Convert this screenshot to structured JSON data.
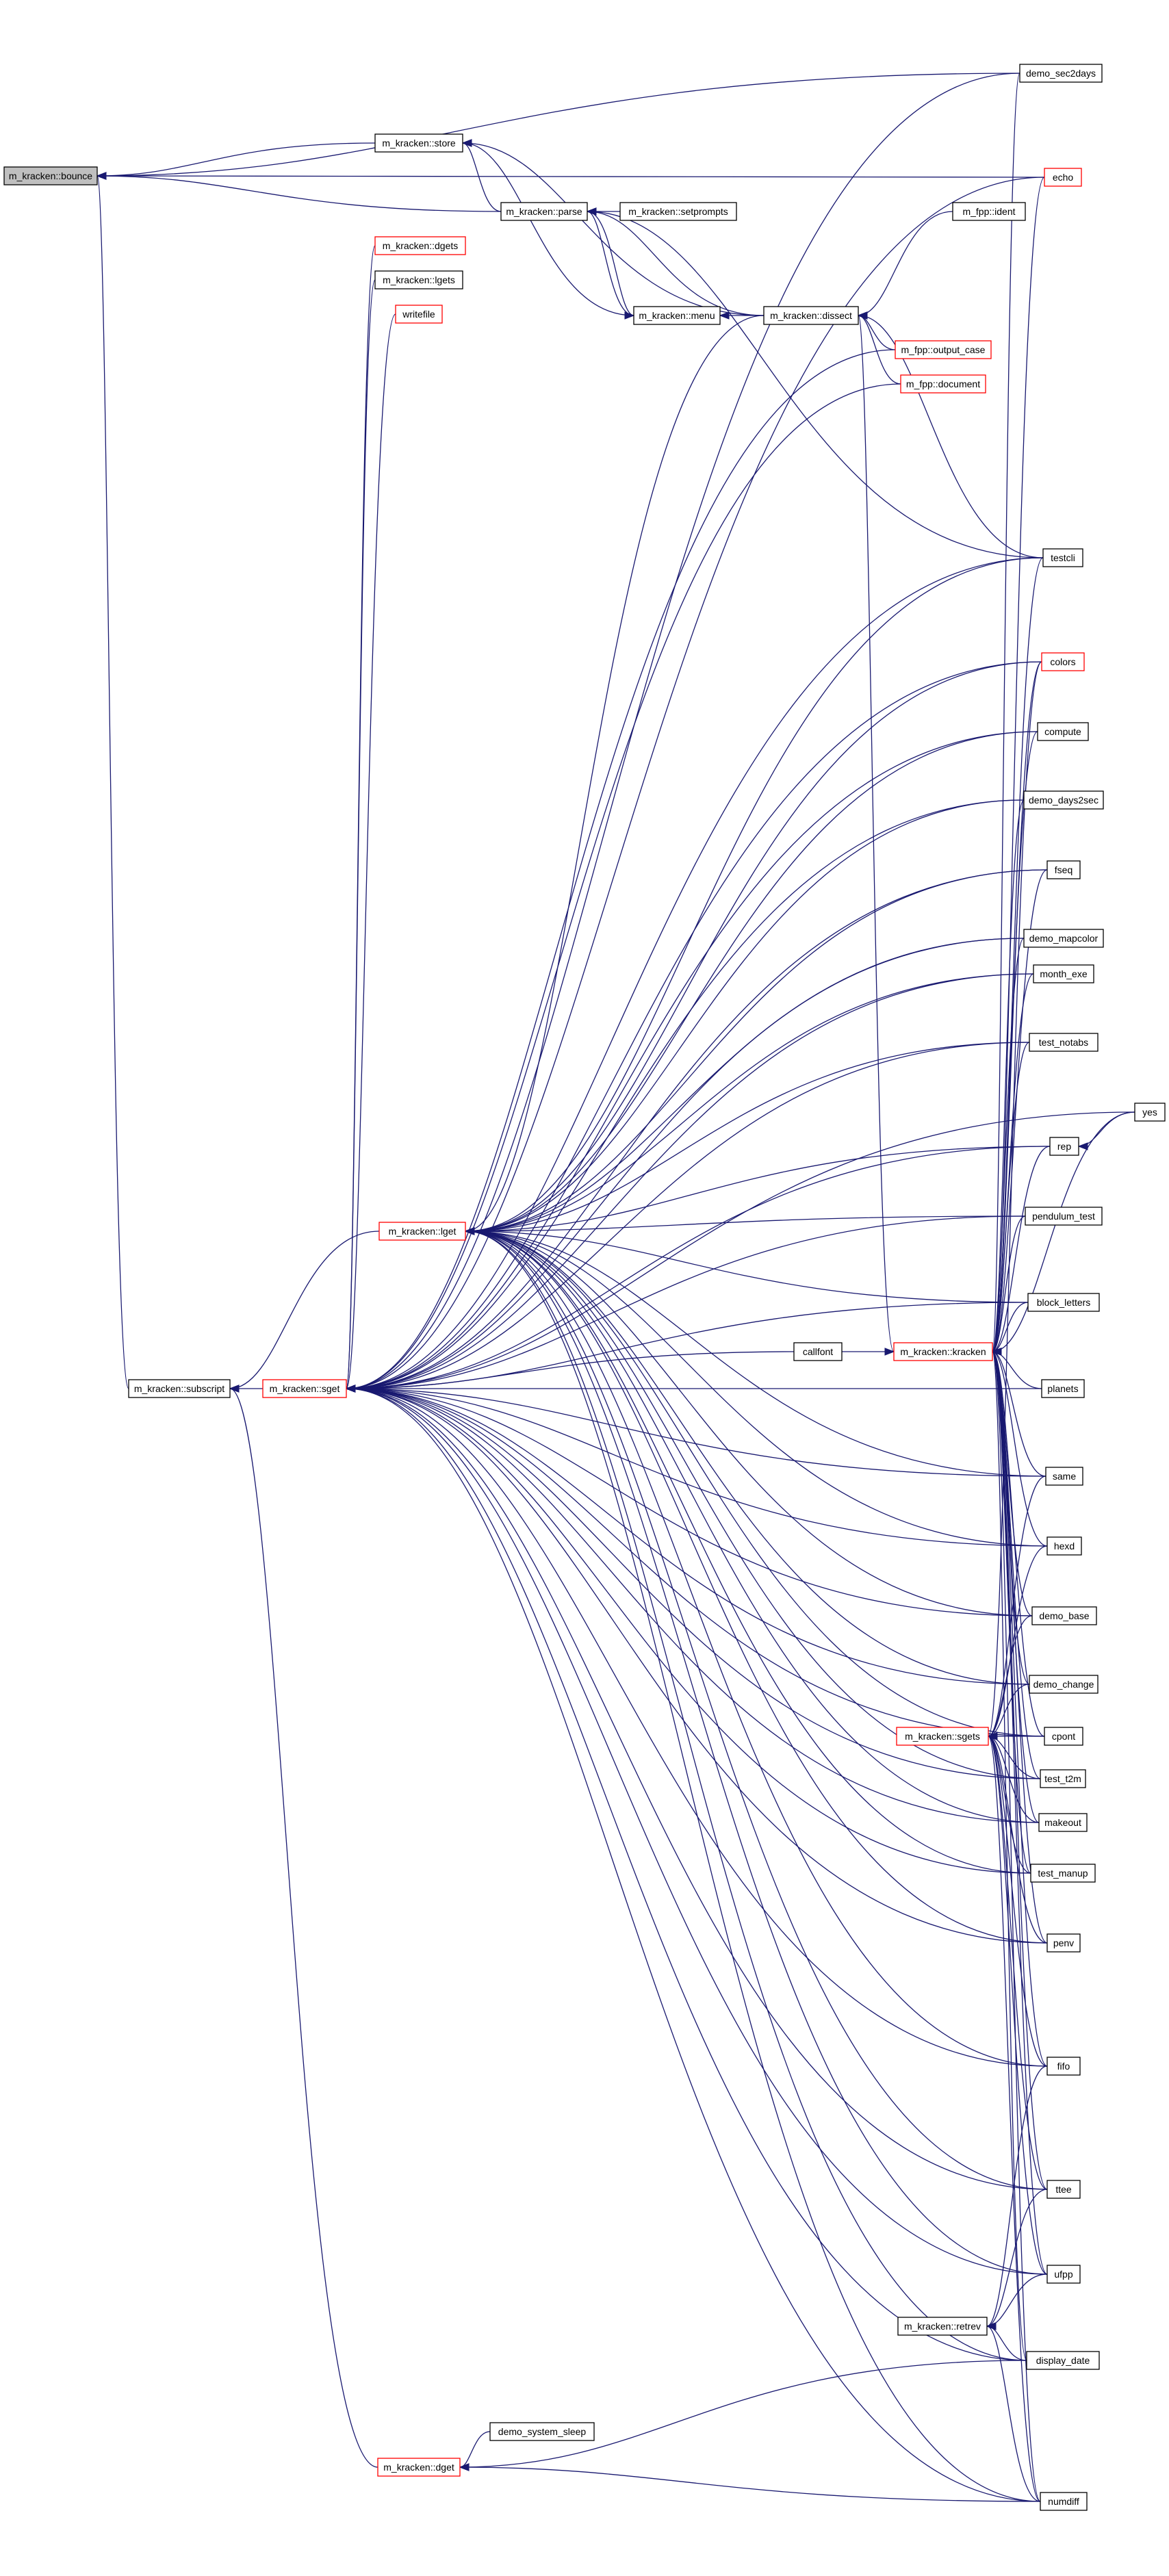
{
  "colors": {
    "edge": "#191970",
    "node_border": "#000000",
    "node_border_highlight": "#ff0000",
    "root_fill": "#bfbfbf"
  },
  "nodes": [
    {
      "id": "bounce",
      "label": "m_kracken::bounce",
      "style": "root"
    },
    {
      "id": "store",
      "label": "m_kracken::store",
      "style": "normal"
    },
    {
      "id": "parse",
      "label": "m_kracken::parse",
      "style": "normal"
    },
    {
      "id": "setprompts",
      "label": "m_kracken::setprompts",
      "style": "normal"
    },
    {
      "id": "dgets",
      "label": "m_kracken::dgets",
      "style": "red"
    },
    {
      "id": "lgets",
      "label": "m_kracken::lgets",
      "style": "normal"
    },
    {
      "id": "writefile",
      "label": "writefile",
      "style": "red"
    },
    {
      "id": "menu",
      "label": "m_kracken::menu",
      "style": "normal"
    },
    {
      "id": "dissect",
      "label": "m_kracken::dissect",
      "style": "normal"
    },
    {
      "id": "ident",
      "label": "m_fpp::ident",
      "style": "normal"
    },
    {
      "id": "output_case",
      "label": "m_fpp::output_case",
      "style": "red"
    },
    {
      "id": "document",
      "label": "m_fpp::document",
      "style": "red"
    },
    {
      "id": "demo_sec2days",
      "label": "demo_sec2days",
      "style": "normal"
    },
    {
      "id": "echo",
      "label": "echo",
      "style": "red"
    },
    {
      "id": "testcli",
      "label": "testcli",
      "style": "normal"
    },
    {
      "id": "colors",
      "label": "colors",
      "style": "red"
    },
    {
      "id": "compute",
      "label": "compute",
      "style": "normal"
    },
    {
      "id": "demo_days2sec",
      "label": "demo_days2sec",
      "style": "normal"
    },
    {
      "id": "fseq",
      "label": "fseq",
      "style": "normal"
    },
    {
      "id": "demo_mapcolor",
      "label": "demo_mapcolor",
      "style": "normal"
    },
    {
      "id": "month_exe",
      "label": "month_exe",
      "style": "normal"
    },
    {
      "id": "test_notabs",
      "label": "test_notabs",
      "style": "normal"
    },
    {
      "id": "yes",
      "label": "yes",
      "style": "normal"
    },
    {
      "id": "rep",
      "label": "rep",
      "style": "normal"
    },
    {
      "id": "pendulum_test",
      "label": "pendulum_test",
      "style": "normal"
    },
    {
      "id": "lget",
      "label": "m_kracken::lget",
      "style": "red"
    },
    {
      "id": "block_letters",
      "label": "block_letters",
      "style": "normal"
    },
    {
      "id": "callfont",
      "label": "callfont",
      "style": "normal"
    },
    {
      "id": "kracken",
      "label": "m_kracken::kracken",
      "style": "red"
    },
    {
      "id": "subscript",
      "label": "m_kracken::subscript",
      "style": "normal"
    },
    {
      "id": "sget",
      "label": "m_kracken::sget",
      "style": "red"
    },
    {
      "id": "planets",
      "label": "planets",
      "style": "normal"
    },
    {
      "id": "same",
      "label": "same",
      "style": "normal"
    },
    {
      "id": "hexd",
      "label": "hexd",
      "style": "normal"
    },
    {
      "id": "demo_base",
      "label": "demo_base",
      "style": "normal"
    },
    {
      "id": "demo_change",
      "label": "demo_change",
      "style": "normal"
    },
    {
      "id": "sgets",
      "label": "m_kracken::sgets",
      "style": "red"
    },
    {
      "id": "cpont",
      "label": "cpont",
      "style": "normal"
    },
    {
      "id": "test_t2m",
      "label": "test_t2m",
      "style": "normal"
    },
    {
      "id": "makeout",
      "label": "makeout",
      "style": "normal"
    },
    {
      "id": "test_manup",
      "label": "test_manup",
      "style": "normal"
    },
    {
      "id": "penv",
      "label": "penv",
      "style": "normal"
    },
    {
      "id": "fifo",
      "label": "fifo",
      "style": "normal"
    },
    {
      "id": "ttee",
      "label": "ttee",
      "style": "normal"
    },
    {
      "id": "ufpp",
      "label": "ufpp",
      "style": "normal"
    },
    {
      "id": "retrev",
      "label": "m_kracken::retrev",
      "style": "normal"
    },
    {
      "id": "display_date",
      "label": "display_date",
      "style": "normal"
    },
    {
      "id": "demo_system_sleep",
      "label": "demo_system_sleep",
      "style": "normal"
    },
    {
      "id": "dget",
      "label": "m_kracken::dget",
      "style": "red"
    },
    {
      "id": "numdiff",
      "label": "numdiff",
      "style": "normal"
    }
  ],
  "edges": [
    [
      "store",
      "bounce"
    ],
    [
      "parse",
      "bounce"
    ],
    [
      "subscript",
      "bounce"
    ],
    [
      "echo",
      "bounce"
    ],
    [
      "demo_sec2days",
      "bounce"
    ],
    [
      "parse",
      "store"
    ],
    [
      "menu",
      "store"
    ],
    [
      "dissect",
      "store"
    ],
    [
      "setprompts",
      "parse"
    ],
    [
      "menu",
      "parse"
    ],
    [
      "dissect",
      "parse"
    ],
    [
      "testcli",
      "parse"
    ],
    [
      "parse",
      "menu"
    ],
    [
      "dissect",
      "menu"
    ],
    [
      "ident",
      "dissect"
    ],
    [
      "output_case",
      "dissect"
    ],
    [
      "document",
      "dissect"
    ],
    [
      "testcli",
      "dissect"
    ],
    [
      "kracken",
      "dissect"
    ],
    [
      "sget",
      "subscript"
    ],
    [
      "lget",
      "subscript"
    ],
    [
      "dget",
      "subscript"
    ],
    [
      "dgets",
      "sget"
    ],
    [
      "lgets",
      "sget"
    ],
    [
      "writefile",
      "sget"
    ],
    [
      "output_case",
      "sget"
    ],
    [
      "document",
      "sget"
    ],
    [
      "demo_sec2days",
      "sget"
    ],
    [
      "echo",
      "sget"
    ],
    [
      "testcli",
      "sget"
    ],
    [
      "colors",
      "sget"
    ],
    [
      "compute",
      "sget"
    ],
    [
      "demo_days2sec",
      "sget"
    ],
    [
      "fseq",
      "sget"
    ],
    [
      "demo_mapcolor",
      "sget"
    ],
    [
      "month_exe",
      "sget"
    ],
    [
      "test_notabs",
      "sget"
    ],
    [
      "yes",
      "sget"
    ],
    [
      "rep",
      "sget"
    ],
    [
      "pendulum_test",
      "sget"
    ],
    [
      "callfont",
      "sget"
    ],
    [
      "block_letters",
      "sget"
    ],
    [
      "planets",
      "sget"
    ],
    [
      "same",
      "sget"
    ],
    [
      "hexd",
      "sget"
    ],
    [
      "demo_base",
      "sget"
    ],
    [
      "demo_change",
      "sget"
    ],
    [
      "cpont",
      "sget"
    ],
    [
      "test_t2m",
      "sget"
    ],
    [
      "makeout",
      "sget"
    ],
    [
      "test_manup",
      "sget"
    ],
    [
      "penv",
      "sget"
    ],
    [
      "fifo",
      "sget"
    ],
    [
      "ttee",
      "sget"
    ],
    [
      "ufpp",
      "sget"
    ],
    [
      "display_date",
      "sget"
    ],
    [
      "numdiff",
      "sget"
    ],
    [
      "dissect",
      "lget"
    ],
    [
      "testcli",
      "lget"
    ],
    [
      "colors",
      "lget"
    ],
    [
      "compute",
      "lget"
    ],
    [
      "demo_days2sec",
      "lget"
    ],
    [
      "fseq",
      "lget"
    ],
    [
      "demo_mapcolor",
      "lget"
    ],
    [
      "month_exe",
      "lget"
    ],
    [
      "test_notabs",
      "lget"
    ],
    [
      "rep",
      "lget"
    ],
    [
      "pendulum_test",
      "lget"
    ],
    [
      "block_letters",
      "lget"
    ],
    [
      "same",
      "lget"
    ],
    [
      "hexd",
      "lget"
    ],
    [
      "demo_base",
      "lget"
    ],
    [
      "demo_change",
      "lget"
    ],
    [
      "cpont",
      "lget"
    ],
    [
      "test_t2m",
      "lget"
    ],
    [
      "makeout",
      "lget"
    ],
    [
      "test_manup",
      "lget"
    ],
    [
      "penv",
      "lget"
    ],
    [
      "fifo",
      "lget"
    ],
    [
      "ttee",
      "lget"
    ],
    [
      "ufpp",
      "lget"
    ],
    [
      "display_date",
      "lget"
    ],
    [
      "numdiff",
      "lget"
    ],
    [
      "demo_system_sleep",
      "dget"
    ],
    [
      "display_date",
      "dget"
    ],
    [
      "numdiff",
      "dget"
    ],
    [
      "yes",
      "rep"
    ],
    [
      "yes",
      "kracken"
    ],
    [
      "callfont",
      "kracken"
    ],
    [
      "testcli",
      "kracken"
    ],
    [
      "colors",
      "kracken"
    ],
    [
      "compute",
      "kracken"
    ],
    [
      "demo_days2sec",
      "kracken"
    ],
    [
      "fseq",
      "kracken"
    ],
    [
      "demo_mapcolor",
      "kracken"
    ],
    [
      "month_exe",
      "kracken"
    ],
    [
      "test_notabs",
      "kracken"
    ],
    [
      "rep",
      "kracken"
    ],
    [
      "pendulum_test",
      "kracken"
    ],
    [
      "block_letters",
      "kracken"
    ],
    [
      "planets",
      "kracken"
    ],
    [
      "same",
      "kracken"
    ],
    [
      "hexd",
      "kracken"
    ],
    [
      "demo_base",
      "kracken"
    ],
    [
      "demo_change",
      "kracken"
    ],
    [
      "cpont",
      "kracken"
    ],
    [
      "test_t2m",
      "kracken"
    ],
    [
      "makeout",
      "kracken"
    ],
    [
      "test_manup",
      "kracken"
    ],
    [
      "penv",
      "kracken"
    ],
    [
      "fifo",
      "kracken"
    ],
    [
      "ttee",
      "kracken"
    ],
    [
      "ufpp",
      "kracken"
    ],
    [
      "display_date",
      "kracken"
    ],
    [
      "numdiff",
      "kracken"
    ],
    [
      "echo",
      "kracken"
    ],
    [
      "demo_sec2days",
      "kracken"
    ],
    [
      "same",
      "sgets"
    ],
    [
      "hexd",
      "sgets"
    ],
    [
      "demo_base",
      "sgets"
    ],
    [
      "demo_change",
      "sgets"
    ],
    [
      "cpont",
      "sgets"
    ],
    [
      "test_t2m",
      "sgets"
    ],
    [
      "makeout",
      "sgets"
    ],
    [
      "test_manup",
      "sgets"
    ],
    [
      "penv",
      "sgets"
    ],
    [
      "fifo",
      "sgets"
    ],
    [
      "ttee",
      "sgets"
    ],
    [
      "ufpp",
      "sgets"
    ],
    [
      "numdiff",
      "sgets"
    ],
    [
      "colors",
      "sgets"
    ],
    [
      "fifo",
      "retrev"
    ],
    [
      "ttee",
      "retrev"
    ],
    [
      "ufpp",
      "retrev"
    ],
    [
      "display_date",
      "retrev"
    ],
    [
      "numdiff",
      "retrev"
    ]
  ]
}
